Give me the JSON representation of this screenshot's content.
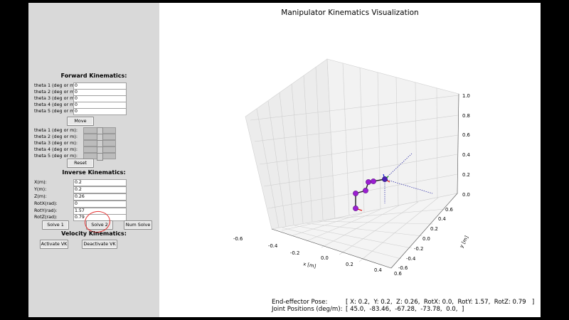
{
  "forward": {
    "title": "Forward Kinematics:",
    "fields": [
      {
        "label": "theta 1 (deg or m):",
        "value": "0"
      },
      {
        "label": "theta 2 (deg or m):",
        "value": "0"
      },
      {
        "label": "theta 3 (deg or m):",
        "value": "0"
      },
      {
        "label": "theta 4 (deg or m):",
        "value": "0"
      },
      {
        "label": "theta 5 (deg or m):",
        "value": "0"
      }
    ],
    "move_label": "Move",
    "sliders": [
      {
        "label": "theta 1 (deg or m):"
      },
      {
        "label": "theta 2 (deg or m):"
      },
      {
        "label": "theta 3 (deg or m):"
      },
      {
        "label": "theta 4 (deg or m):"
      },
      {
        "label": "theta 5 (deg or m):"
      }
    ],
    "reset_label": "Reset"
  },
  "inverse": {
    "title": "Inverse Kinematics:",
    "fields": [
      {
        "label": "X(m):",
        "value": "0.2"
      },
      {
        "label": "Y(m):",
        "value": "0.2"
      },
      {
        "label": "Z(m):",
        "value": "0.26"
      },
      {
        "label": "RotX(rad):",
        "value": "0"
      },
      {
        "label": "RotY(rad):",
        "value": "1.57"
      },
      {
        "label": "RotZ(rad):",
        "value": "0.79"
      }
    ],
    "solve1_label": "Solve 1",
    "solve2_label": "Solve 2",
    "numsolve_label": "Num Solve"
  },
  "velocity": {
    "title": "Velocity Kinematics:",
    "activate_label": "Activate VK",
    "deactivate_label": "Deactivate VK"
  },
  "plot": {
    "title": "Manipulator Kinematics Visualization",
    "x_label": "x [m]",
    "y_label": "y [m]",
    "x_ticks": [
      "-0.6",
      "-0.4",
      "-0.2",
      "0.0",
      "0.2",
      "0.4",
      "0.6"
    ],
    "y_ticks": [
      "-0.6",
      "-0.4",
      "-0.2",
      "0.0",
      "0.2",
      "0.4",
      "0.6"
    ],
    "z_ticks": [
      "0.0",
      "0.2",
      "0.4",
      "0.6",
      "0.8",
      "1.0"
    ],
    "joint_color": "#9b1fd1",
    "end_effector_color": "#4b1fb5"
  },
  "status": {
    "pose_label": "End-effector Pose:",
    "pose_value": "[ X: 0.2,  Y: 0.2,  Z: 0.26,  RotX: 0.0,  RotY: 1.57,  RotZ: 0.79   ]",
    "joints_label": "Joint Positions (deg/m):",
    "joints_value": "[ 45.0,  -83.46,  -67.28,  -73.78,  0.0,  ]"
  }
}
